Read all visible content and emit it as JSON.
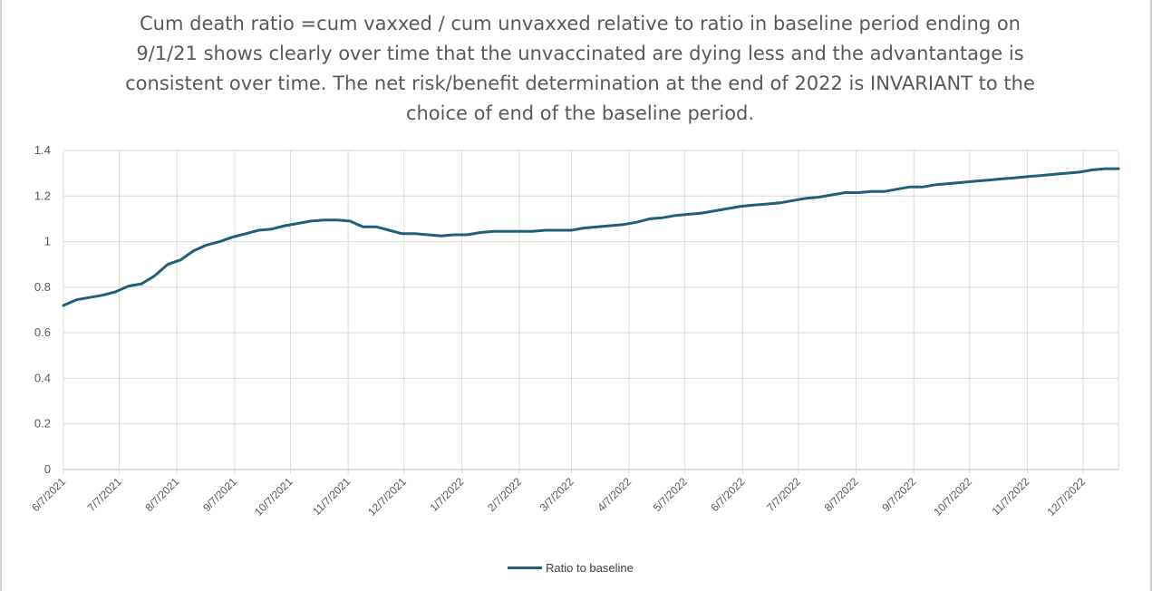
{
  "chart_data": {
    "type": "line",
    "title": "Cum death ratio =cum vaxxed / cum unvaxxed relative to ratio in baseline period ending on 9/1/21 shows clearly over time that the unvaccinated are dying less and the advantantage is consistent over time. The net risk/benefit determination at the end of 2022 is INVARIANT to the choice of end of the baseline period.",
    "xlabel": "",
    "ylabel": "",
    "ylim": [
      0,
      1.4
    ],
    "y_ticks": [
      "0",
      "0.2",
      "0.4",
      "0.6",
      "0.8",
      "1",
      "1.2",
      "1.4"
    ],
    "x_ticks": [
      "6/7/2021",
      "7/7/2021",
      "8/7/2021",
      "9/7/2021",
      "10/7/2021",
      "11/7/2021",
      "12/7/2021",
      "1/7/2022",
      "2/7/2022",
      "3/7/2022",
      "4/7/2022",
      "5/7/2022",
      "6/7/2022",
      "7/7/2022",
      "8/7/2022",
      "9/7/2022",
      "10/7/2022",
      "11/7/2022",
      "12/7/2022"
    ],
    "xlim": [
      "2021-06-07",
      "2022-12-26"
    ],
    "grid": true,
    "legend_position": "bottom",
    "series": [
      {
        "name": "Ratio to baseline",
        "color": "#1f5f7a",
        "points": [
          [
            "2021-06-07",
            0.72
          ],
          [
            "2021-06-14",
            0.745
          ],
          [
            "2021-06-21",
            0.755
          ],
          [
            "2021-06-28",
            0.765
          ],
          [
            "2021-07-05",
            0.78
          ],
          [
            "2021-07-12",
            0.805
          ],
          [
            "2021-07-19",
            0.815
          ],
          [
            "2021-07-26",
            0.85
          ],
          [
            "2021-08-02",
            0.9
          ],
          [
            "2021-08-09",
            0.92
          ],
          [
            "2021-08-16",
            0.96
          ],
          [
            "2021-08-23",
            0.985
          ],
          [
            "2021-08-30",
            1.0
          ],
          [
            "2021-09-06",
            1.02
          ],
          [
            "2021-09-13",
            1.035
          ],
          [
            "2021-09-20",
            1.05
          ],
          [
            "2021-09-27",
            1.055
          ],
          [
            "2021-10-04",
            1.07
          ],
          [
            "2021-10-11",
            1.08
          ],
          [
            "2021-10-18",
            1.09
          ],
          [
            "2021-10-25",
            1.095
          ],
          [
            "2021-11-01",
            1.095
          ],
          [
            "2021-11-08",
            1.09
          ],
          [
            "2021-11-15",
            1.065
          ],
          [
            "2021-11-22",
            1.065
          ],
          [
            "2021-11-29",
            1.05
          ],
          [
            "2021-12-06",
            1.035
          ],
          [
            "2021-12-13",
            1.035
          ],
          [
            "2021-12-20",
            1.03
          ],
          [
            "2021-12-27",
            1.025
          ],
          [
            "2022-01-03",
            1.03
          ],
          [
            "2022-01-10",
            1.03
          ],
          [
            "2022-01-17",
            1.04
          ],
          [
            "2022-01-24",
            1.045
          ],
          [
            "2022-01-31",
            1.045
          ],
          [
            "2022-02-07",
            1.045
          ],
          [
            "2022-02-14",
            1.045
          ],
          [
            "2022-02-21",
            1.05
          ],
          [
            "2022-02-28",
            1.05
          ],
          [
            "2022-03-07",
            1.05
          ],
          [
            "2022-03-14",
            1.06
          ],
          [
            "2022-03-21",
            1.065
          ],
          [
            "2022-03-28",
            1.07
          ],
          [
            "2022-04-04",
            1.075
          ],
          [
            "2022-04-11",
            1.085
          ],
          [
            "2022-04-18",
            1.1
          ],
          [
            "2022-04-25",
            1.105
          ],
          [
            "2022-05-02",
            1.115
          ],
          [
            "2022-05-09",
            1.12
          ],
          [
            "2022-05-16",
            1.125
          ],
          [
            "2022-05-23",
            1.135
          ],
          [
            "2022-05-30",
            1.145
          ],
          [
            "2022-06-06",
            1.155
          ],
          [
            "2022-06-13",
            1.16
          ],
          [
            "2022-06-20",
            1.165
          ],
          [
            "2022-06-27",
            1.17
          ],
          [
            "2022-07-04",
            1.18
          ],
          [
            "2022-07-11",
            1.19
          ],
          [
            "2022-07-18",
            1.195
          ],
          [
            "2022-07-25",
            1.205
          ],
          [
            "2022-08-01",
            1.215
          ],
          [
            "2022-08-08",
            1.215
          ],
          [
            "2022-08-15",
            1.22
          ],
          [
            "2022-08-22",
            1.22
          ],
          [
            "2022-08-29",
            1.23
          ],
          [
            "2022-09-05",
            1.24
          ],
          [
            "2022-09-12",
            1.24
          ],
          [
            "2022-09-19",
            1.25
          ],
          [
            "2022-09-26",
            1.255
          ],
          [
            "2022-10-03",
            1.26
          ],
          [
            "2022-10-10",
            1.265
          ],
          [
            "2022-10-17",
            1.27
          ],
          [
            "2022-10-24",
            1.275
          ],
          [
            "2022-10-31",
            1.28
          ],
          [
            "2022-11-07",
            1.285
          ],
          [
            "2022-11-14",
            1.29
          ],
          [
            "2022-11-21",
            1.295
          ],
          [
            "2022-11-28",
            1.3
          ],
          [
            "2022-12-05",
            1.305
          ],
          [
            "2022-12-12",
            1.315
          ],
          [
            "2022-12-19",
            1.32
          ],
          [
            "2022-12-26",
            1.32
          ]
        ]
      }
    ]
  }
}
